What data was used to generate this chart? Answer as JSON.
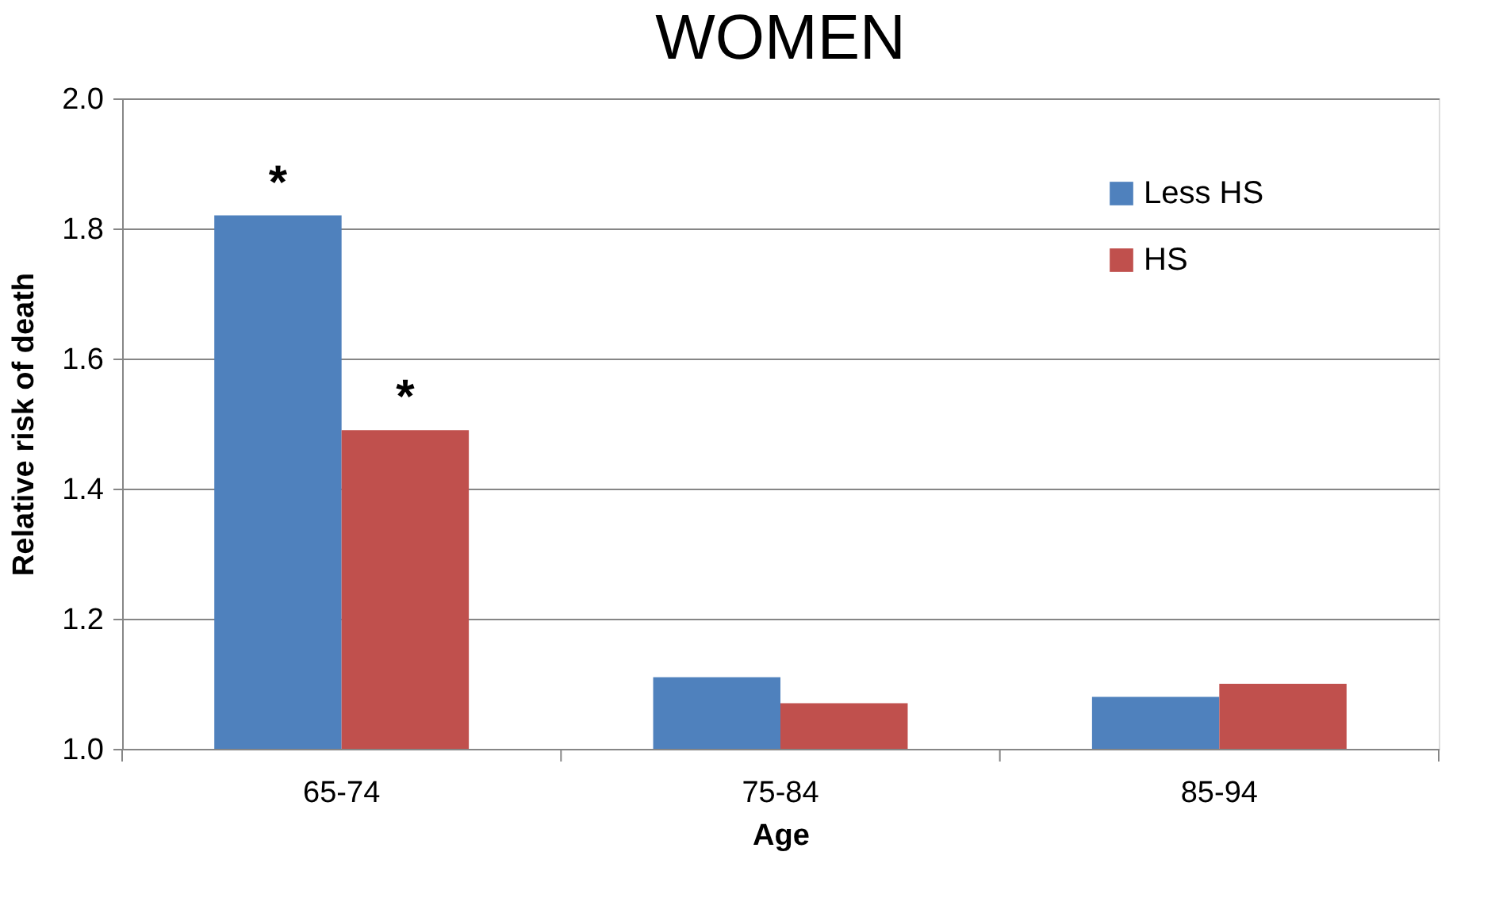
{
  "chart_data": {
    "type": "bar",
    "title": "WOMEN",
    "xlabel": "Age",
    "ylabel": "Relative risk of death",
    "categories": [
      "65-74",
      "75-84",
      "85-94"
    ],
    "series": [
      {
        "name": "Less HS",
        "color": "#4f81bd",
        "values": [
          1.82,
          1.11,
          1.08
        ]
      },
      {
        "name": "HS",
        "color": "#c0504d",
        "values": [
          1.49,
          1.07,
          1.1
        ]
      }
    ],
    "ylim": [
      1.0,
      2.0
    ],
    "yticks": [
      {
        "value": 1.0,
        "label": "1.0"
      },
      1.2,
      1.4,
      1.6,
      1.8,
      {
        "value": 2.0,
        "label": "2.0"
      }
    ],
    "grid": "y",
    "legend": "top right",
    "annotations": [
      {
        "text": "*",
        "x": "65-74",
        "y": 1.82
      },
      {
        "text": "*",
        "x": "65-74",
        "y": 1.49
      }
    ]
  }
}
